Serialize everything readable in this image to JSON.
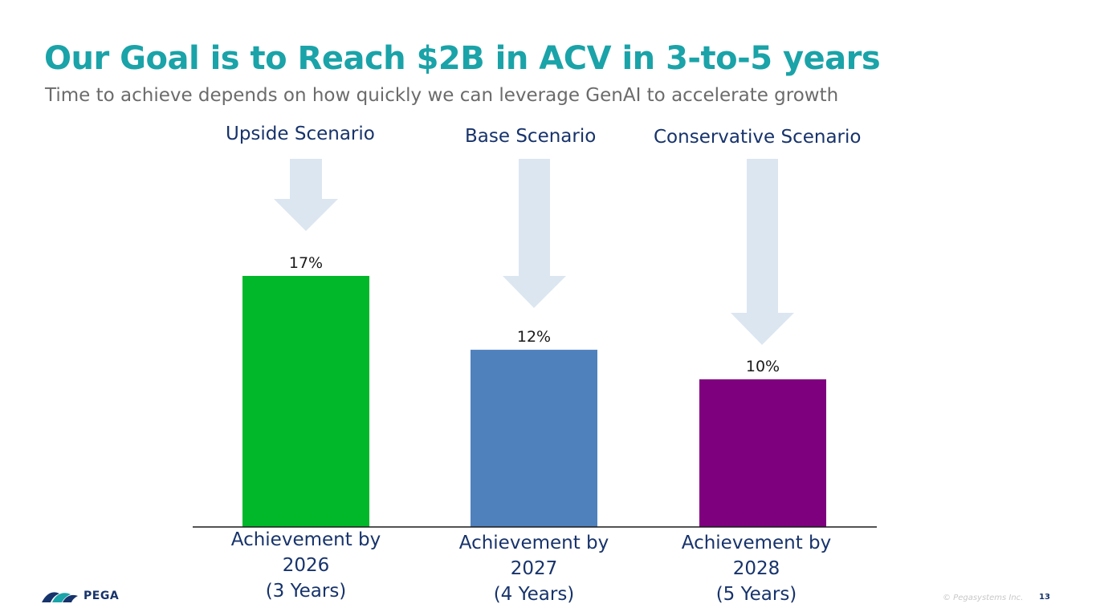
{
  "slide": {
    "title": "Our Goal is to Reach $2B in ACV in 3-to-5 years",
    "subtitle": "Time to achieve depends on how quickly we can leverage GenAI to accelerate growth",
    "copyright": "© Pegasystems Inc.",
    "page_number": "13",
    "logo_text": "PEGA"
  },
  "scenarios": [
    "Upside Scenario",
    "Base Scenario",
    "Conservative Scenario"
  ],
  "chart_data": {
    "type": "bar",
    "categories": [
      "Achievement by\n2026\n(3 Years)",
      "Achievement by\n2027\n(4 Years)",
      "Achievement by\n2028\n(5 Years)"
    ],
    "values": [
      17,
      12,
      10
    ],
    "data_labels": [
      "17%",
      "12%",
      "10%"
    ],
    "colors": [
      "#00b82a",
      "#4f81bd",
      "#7f007f"
    ],
    "ylim": [
      0,
      19
    ],
    "title": "",
    "xlabel": "",
    "ylabel": "",
    "grid": false
  },
  "colors": {
    "title": "#1aa3a8",
    "scenario_text": "#17336b",
    "arrow": "#dce6f1"
  }
}
